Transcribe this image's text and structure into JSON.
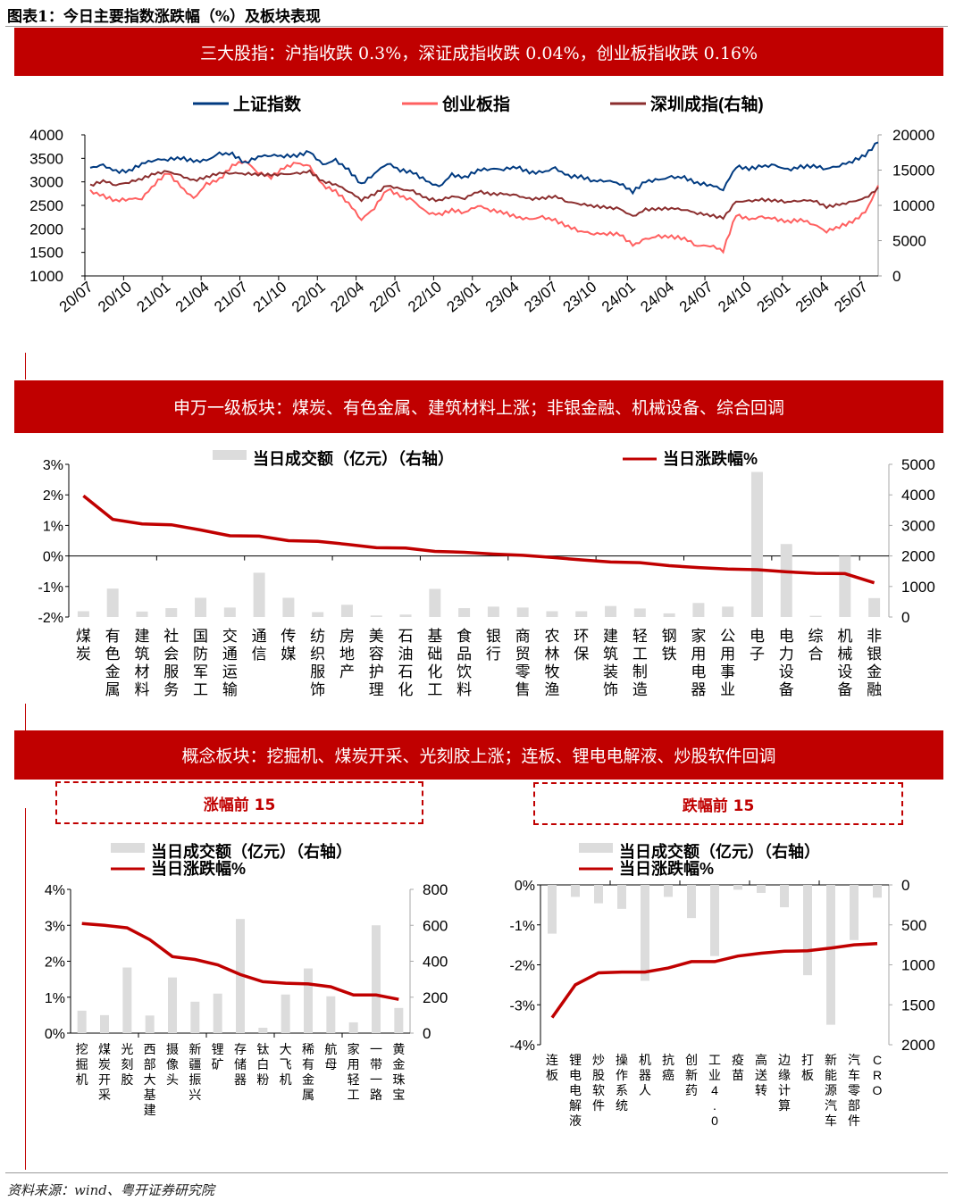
{
  "figure_title": "图表1：今日主要指数涨跌幅（%）及板块表现",
  "banners": {
    "indices": "三大股指：沪指收跌 0.3%，深证成指收跌 0.04%，创业板指收跌 0.16%",
    "sw": "申万一级板块：煤炭、有色金属、建筑材料上涨；非银金融、机械设备、综合回调",
    "concept": "概念板块：挖掘机、煤炭开采、光刻胶上涨；连板、锂电电解液、炒股软件回调"
  },
  "boxes": {
    "gainers": "涨幅前 15",
    "losers": "跌幅前 15"
  },
  "source": "资料来源：wind、粤开证券研究院",
  "colors": {
    "sse": "#003a80",
    "chinext": "#ff6060",
    "szc": "#8b2e2e",
    "line_red": "#c00000",
    "bar_gray": "#dcdcdc",
    "banner": "#c00000"
  },
  "chart_data": [
    {
      "type": "line",
      "legend": [
        "上证指数",
        "创业板指",
        "深圳成指(右轴)"
      ],
      "legend_placement": "top",
      "x_ticks": [
        "20/07",
        "20/10",
        "21/01",
        "21/04",
        "21/07",
        "21/10",
        "22/01",
        "22/04",
        "22/07",
        "22/10",
        "23/01",
        "23/04",
        "23/07",
        "23/10",
        "24/01",
        "24/04",
        "24/07",
        "24/10",
        "25/01",
        "25/04",
        "25/07"
      ],
      "x_range": [
        "2020/07",
        "2025/08"
      ],
      "ylim": [
        1000,
        4000
      ],
      "yticks": [
        "1000",
        "1500",
        "2000",
        "2500",
        "3000",
        "3500",
        "4000"
      ],
      "y2lim": [
        0,
        20000
      ],
      "y2ticks": [
        "0",
        "5000",
        "10000",
        "15000",
        "20000"
      ],
      "series": [
        {
          "name": "上证指数",
          "axis": "left",
          "values": [
            3300,
            3350,
            3220,
            3230,
            3390,
            3470,
            3480,
            3510,
            3440,
            3450,
            3600,
            3590,
            3400,
            3540,
            3570,
            3550,
            3560,
            3640,
            3360,
            3460,
            3250,
            2950,
            3180,
            3400,
            3250,
            3200,
            3020,
            2890,
            3150,
            3090,
            3250,
            3280,
            3270,
            3320,
            3200,
            3200,
            3290,
            3120,
            3110,
            3020,
            3030,
            2970,
            2790,
            3010,
            3040,
            3100,
            3090,
            2970,
            2940,
            2840,
            3330,
            3280,
            3330,
            3350,
            3250,
            3320,
            3340,
            3280,
            3350,
            3440,
            3570,
            3850
          ]
        },
        {
          "name": "创业板指",
          "axis": "left",
          "values": [
            2800,
            2700,
            2600,
            2640,
            2650,
            2960,
            3200,
            2900,
            2640,
            2950,
            3050,
            3350,
            3450,
            3200,
            3100,
            3300,
            3400,
            3320,
            2920,
            2800,
            2550,
            2200,
            2450,
            2850,
            2700,
            2600,
            2350,
            2300,
            2400,
            2350,
            2500,
            2400,
            2350,
            2250,
            2200,
            2250,
            2180,
            2050,
            1950,
            1900,
            1900,
            1890,
            1650,
            1780,
            1840,
            1830,
            1800,
            1640,
            1650,
            1540,
            2300,
            2200,
            2250,
            2210,
            2150,
            2200,
            2100,
            1950,
            2050,
            2150,
            2350,
            2900
          ]
        },
        {
          "name": "深圳成指(右轴)",
          "axis": "right",
          "values": [
            12800,
            13500,
            12900,
            13300,
            13800,
            14500,
            14800,
            14200,
            13500,
            14000,
            14600,
            14600,
            14500,
            14400,
            14300,
            14400,
            14500,
            14800,
            13400,
            13000,
            12000,
            10800,
            11600,
            12800,
            12300,
            12000,
            11000,
            10700,
            11300,
            11000,
            12000,
            11600,
            11600,
            11400,
            10900,
            11000,
            11300,
            10500,
            10200,
            9900,
            9700,
            9500,
            8400,
            9400,
            9500,
            9600,
            9400,
            8900,
            8600,
            8200,
            10500,
            10600,
            10800,
            10700,
            10500,
            10700,
            10700,
            9800,
            10100,
            10500,
            11000,
            12400
          ]
        }
      ]
    },
    {
      "type": "bar+line",
      "legend": [
        "当日成交额（亿元）（右轴）",
        "当日涨跌幅%"
      ],
      "categories": [
        "煤炭",
        "有色金属",
        "建筑材料",
        "社会服务",
        "国防军工",
        "交通运输",
        "通信",
        "传媒",
        "纺织服饰",
        "房地产",
        "美容护理",
        "石油石化",
        "基础化工",
        "食品饮料",
        "银行",
        "商贸零售",
        "农林牧渔",
        "环保",
        "建筑装饰",
        "轻工制造",
        "钢铁",
        "家用电器",
        "公用事业",
        "电子",
        "电力设备",
        "综合",
        "机械设备",
        "非银金融"
      ],
      "line_values": [
        1.97,
        1.2,
        1.05,
        1.02,
        0.85,
        0.66,
        0.65,
        0.5,
        0.48,
        0.38,
        0.27,
        0.26,
        0.15,
        0.12,
        0.06,
        0.02,
        -0.05,
        -0.13,
        -0.2,
        -0.22,
        -0.32,
        -0.38,
        -0.43,
        -0.45,
        -0.52,
        -0.57,
        -0.58,
        -0.88
      ],
      "bar_values": [
        190,
        930,
        180,
        290,
        630,
        310,
        1450,
        630,
        160,
        400,
        50,
        80,
        920,
        290,
        340,
        310,
        190,
        190,
        360,
        280,
        120,
        460,
        340,
        4750,
        2390,
        40,
        2000,
        620
      ],
      "ylim": [
        -2,
        3
      ],
      "yticks": [
        "-2%",
        "-1%",
        "0%",
        "1%",
        "2%",
        "3%"
      ],
      "y2lim": [
        0,
        5000
      ],
      "y2ticks": [
        "0",
        "1000",
        "2000",
        "3000",
        "4000",
        "5000"
      ]
    },
    {
      "type": "bar+line",
      "legend": [
        "当日成交额（亿元）（右轴）",
        "当日涨跌幅%"
      ],
      "categories": [
        "挖掘机",
        "煤炭开采",
        "光刻胶",
        "西部大基建",
        "摄像头",
        "新疆振兴",
        "锂矿",
        "存储器",
        "钛白粉",
        "大飞机",
        "稀有金属",
        "航母",
        "家用轻工",
        "一带一路",
        "黄金珠宝"
      ],
      "line_values": [
        3.05,
        3.0,
        2.93,
        2.6,
        2.13,
        2.05,
        1.9,
        1.63,
        1.43,
        1.39,
        1.37,
        1.29,
        1.06,
        1.06,
        0.94
      ],
      "bar_values": [
        125,
        100,
        365,
        98,
        310,
        175,
        220,
        635,
        30,
        215,
        360,
        205,
        60,
        600,
        140
      ],
      "ylim": [
        0,
        4
      ],
      "yticks": [
        "0%",
        "1%",
        "2%",
        "3%",
        "4%"
      ],
      "y2lim": [
        0,
        800
      ],
      "y2ticks": [
        "0",
        "200",
        "400",
        "600",
        "800"
      ]
    },
    {
      "type": "bar+line",
      "legend": [
        "当日成交额（亿元）（右轴）",
        "当日涨跌幅%"
      ],
      "categories": [
        "连板",
        "锂电电解液",
        "炒股软件",
        "操作系统",
        "机器人",
        "抗癌",
        "创新药",
        "工业4.0",
        "疫苗",
        "高送转",
        "边缘计算",
        "打板",
        "新能源汽车",
        "汽车零部件",
        "CRO"
      ],
      "line_values": [
        -3.32,
        -2.5,
        -2.2,
        -2.18,
        -2.18,
        -2.08,
        -1.92,
        -1.92,
        -1.78,
        -1.71,
        -1.66,
        -1.65,
        -1.58,
        -1.5,
        -1.47
      ],
      "bar_values": [
        610,
        150,
        230,
        300,
        1200,
        150,
        415,
        890,
        60,
        100,
        280,
        1130,
        1750,
        690,
        160
      ],
      "ylim": [
        -4,
        0
      ],
      "yticks": [
        "-4%",
        "-3%",
        "-2%",
        "-1%",
        "0%"
      ],
      "y2lim": [
        2000,
        0
      ],
      "y2ticks": [
        "2000",
        "1500",
        "1000",
        "500",
        "0"
      ]
    }
  ]
}
